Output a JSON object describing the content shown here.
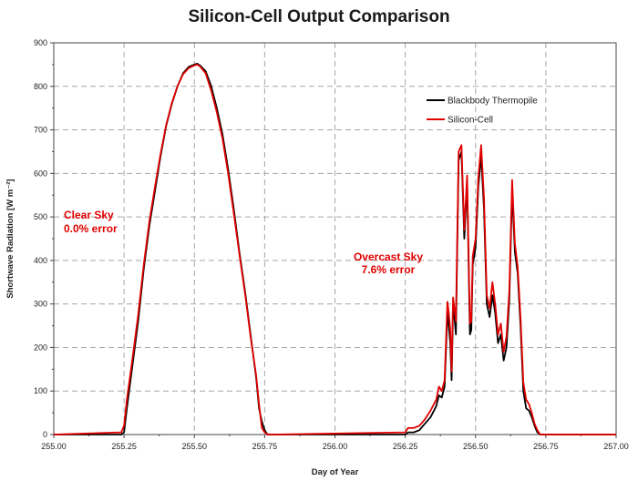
{
  "chart_data": {
    "type": "line",
    "title": "Silicon-Cell Output Comparison",
    "xlabel": "Day of Year",
    "ylabel": "Shortwave Radiation [W m⁻²]",
    "xlim": [
      255.0,
      257.0
    ],
    "ylim": [
      0,
      900
    ],
    "x_ticks": [
      "255.00",
      "255.25",
      "255.50",
      "255.75",
      "256.00",
      "256.25",
      "256.50",
      "256.75",
      "257.00"
    ],
    "y_ticks": [
      "0",
      "100",
      "200",
      "300",
      "400",
      "500",
      "600",
      "700",
      "800",
      "900"
    ],
    "grid": "dashed vertical and horizontal",
    "legend_position": "top-right",
    "colors": {
      "blackbody": "#000000",
      "silicon": "#e00000",
      "annotation": "#e00000",
      "grid": "#a6a6a6"
    },
    "series": [
      {
        "name": "Blackbody Thermopile",
        "x": [
          255.0,
          255.24,
          255.25,
          255.26,
          255.28,
          255.3,
          255.32,
          255.34,
          255.36,
          255.38,
          255.4,
          255.42,
          255.44,
          255.46,
          255.48,
          255.5,
          255.51,
          255.52,
          255.54,
          255.56,
          255.58,
          255.6,
          255.62,
          255.64,
          255.66,
          255.68,
          255.7,
          255.72,
          255.73,
          255.74,
          255.75,
          255.76,
          255.78,
          256.25,
          256.26,
          256.28,
          256.3,
          256.32,
          256.34,
          256.36,
          256.37,
          256.38,
          256.39,
          256.4,
          256.405,
          256.41,
          256.415,
          256.42,
          256.425,
          256.43,
          256.44,
          256.45,
          256.46,
          256.47,
          256.48,
          256.485,
          256.49,
          256.5,
          256.51,
          256.52,
          256.53,
          256.54,
          256.55,
          256.56,
          256.57,
          256.58,
          256.59,
          256.6,
          256.61,
          256.62,
          256.63,
          256.64,
          256.65,
          256.66,
          256.67,
          256.68,
          256.69,
          256.7,
          256.71,
          256.72,
          256.73,
          256.74,
          256.75,
          256.76,
          257.0
        ],
        "y": [
          0,
          0,
          5,
          60,
          160,
          260,
          380,
          480,
          560,
          640,
          710,
          760,
          800,
          830,
          845,
          850,
          852,
          848,
          835,
          800,
          750,
          690,
          610,
          520,
          420,
          330,
          230,
          130,
          60,
          30,
          10,
          0,
          0,
          0,
          5,
          5,
          10,
          25,
          40,
          65,
          90,
          85,
          110,
          280,
          250,
          210,
          125,
          290,
          270,
          230,
          630,
          650,
          450,
          580,
          230,
          240,
          390,
          430,
          570,
          640,
          520,
          300,
          270,
          320,
          280,
          210,
          230,
          170,
          200,
          310,
          560,
          420,
          370,
          250,
          100,
          60,
          55,
          40,
          20,
          5,
          0,
          0,
          0,
          0,
          0
        ]
      },
      {
        "name": "Silicon-Cell",
        "x": [
          255.0,
          255.24,
          255.25,
          255.26,
          255.28,
          255.3,
          255.32,
          255.34,
          255.36,
          255.38,
          255.4,
          255.42,
          255.44,
          255.46,
          255.48,
          255.5,
          255.51,
          255.52,
          255.54,
          255.56,
          255.58,
          255.6,
          255.62,
          255.64,
          255.66,
          255.68,
          255.7,
          255.72,
          255.73,
          255.74,
          255.75,
          255.76,
          255.78,
          256.25,
          256.26,
          256.28,
          256.3,
          256.32,
          256.34,
          256.36,
          256.37,
          256.38,
          256.39,
          256.4,
          256.405,
          256.41,
          256.415,
          256.42,
          256.425,
          256.43,
          256.44,
          256.45,
          256.46,
          256.47,
          256.48,
          256.485,
          256.49,
          256.5,
          256.51,
          256.52,
          256.53,
          256.54,
          256.55,
          256.56,
          256.57,
          256.58,
          256.59,
          256.6,
          256.61,
          256.62,
          256.63,
          256.64,
          256.65,
          256.66,
          256.67,
          256.68,
          256.69,
          256.7,
          256.71,
          256.72,
          256.73,
          256.74,
          256.75,
          256.76,
          257.0
        ],
        "y": [
          0,
          5,
          20,
          80,
          175,
          275,
          390,
          490,
          570,
          645,
          712,
          762,
          800,
          828,
          842,
          848,
          850,
          846,
          830,
          790,
          740,
          680,
          600,
          510,
          415,
          325,
          225,
          135,
          70,
          15,
          5,
          0,
          0,
          5,
          15,
          15,
          20,
          35,
          55,
          80,
          110,
          100,
          125,
          305,
          280,
          240,
          145,
          315,
          290,
          260,
          650,
          665,
          470,
          595,
          255,
          260,
          410,
          450,
          590,
          665,
          545,
          320,
          290,
          350,
          300,
          230,
          255,
          190,
          225,
          330,
          585,
          440,
          385,
          270,
          120,
          80,
          70,
          50,
          25,
          10,
          0,
          0,
          0,
          0,
          0
        ]
      }
    ],
    "annotations": [
      {
        "line1": "Clear Sky",
        "line2": "0.0% error"
      },
      {
        "line1": "Overcast Sky",
        "line2": "7.6% error"
      }
    ]
  }
}
